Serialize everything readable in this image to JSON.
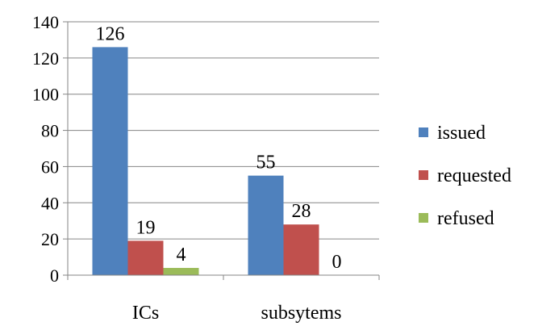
{
  "chart_data": {
    "type": "bar",
    "title": "",
    "xlabel": "",
    "ylabel": "",
    "categories": [
      "ICs",
      "subsytems"
    ],
    "series": [
      {
        "name": "issued",
        "values": [
          126,
          55
        ],
        "color": "#4F81BD"
      },
      {
        "name": "requested",
        "values": [
          19,
          28
        ],
        "color": "#C0504D"
      },
      {
        "name": "refused",
        "values": [
          4,
          0
        ],
        "color": "#9BBB59"
      }
    ],
    "ylim": [
      0,
      140
    ],
    "yticks": [
      0,
      20,
      40,
      60,
      80,
      100,
      120,
      140
    ],
    "grid": true,
    "legend": "right"
  }
}
